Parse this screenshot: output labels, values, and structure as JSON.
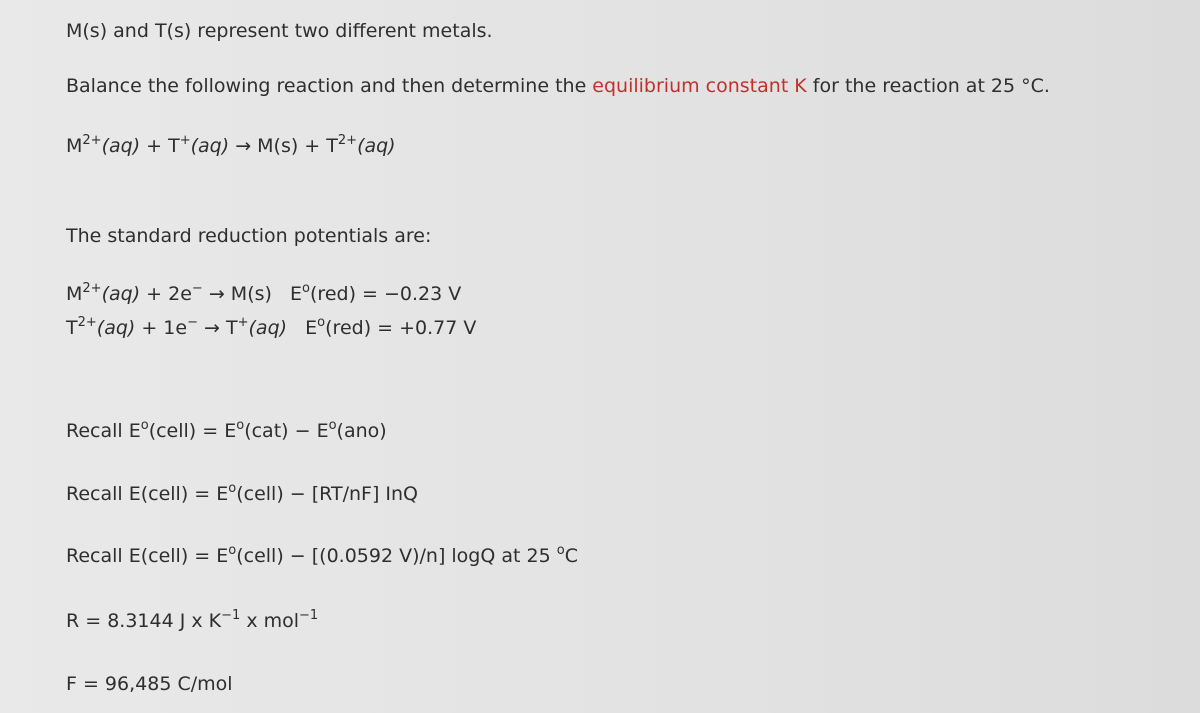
{
  "intro": "M(s) and T(s) represent two different metals.",
  "instruction": [
    "Balance the following reaction and then determine the ",
    "equilibrium constant K",
    " for the reaction at 25 °C."
  ],
  "reaction": [
    "M",
    "2+",
    "(aq)",
    " + T",
    "+",
    "(aq)",
    " → M(s) + T",
    "2+",
    "(aq)"
  ],
  "potentials_heading": "The standard reduction potentials are:",
  "half_reaction_1": [
    "M",
    "2+",
    "(aq)",
    " + 2e",
    "−",
    " → M(s)   E",
    "o",
    "(red) = −0.23 V"
  ],
  "half_reaction_2": [
    "T",
    "2+",
    "(aq)",
    " + 1e",
    "−",
    " → T",
    "+",
    "(aq)",
    "   E",
    "o",
    "(red) = +0.77 V"
  ],
  "recall_1": [
    "Recall E",
    "o",
    "(cell) = E",
    "o",
    "(cat) − E",
    "o",
    "(ano)"
  ],
  "recall_2": [
    "Recall E(cell) = E",
    "o",
    "(cell) − [RT/nF] InQ"
  ],
  "recall_3": [
    "Recall E(cell) = E",
    "o",
    "(cell) − [(0.0592 V)/n] logQ at 25 ",
    "o",
    "C"
  ],
  "gas_constant": [
    "R = 8.3144 J x K",
    "−1",
    " x mol",
    "−1"
  ],
  "faraday_constant": "F = 96,485 C/mol"
}
